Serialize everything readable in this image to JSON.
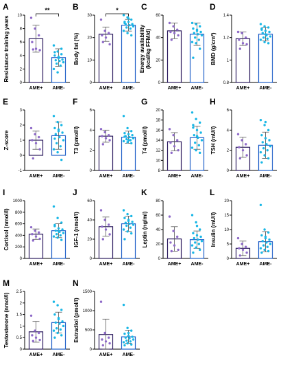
{
  "colors": {
    "ame_plus": "#2b1a5e",
    "ame_minus": "#1f5fc8",
    "dots_plus": "#8e6ac8",
    "dots_minus": "#19b7e6",
    "axis": "#000000"
  },
  "chart_data": [
    {
      "type": "bar",
      "panel": "A",
      "ylabel": "Resistance training years",
      "ylim": [
        0,
        10
      ],
      "yticks": [
        0,
        2,
        4,
        6,
        8,
        10
      ],
      "categories": [
        "AME+",
        "AME-"
      ],
      "values": [
        6.5,
        3.7
      ],
      "err": [
        2.0,
        1.3
      ],
      "points": [
        [
          9.6,
          8.0,
          7.0,
          6.0,
          5.0,
          4.8,
          4.9
        ],
        [
          5.5,
          4.6,
          4.2,
          4.0,
          3.8,
          3.4,
          3.3,
          3.2,
          3.0,
          2.8,
          2.5,
          2.0,
          1.5,
          5.0,
          4.5,
          3.6
        ]
      ],
      "significance": "**"
    },
    {
      "type": "bar",
      "panel": "B",
      "ylabel": "Body fat (%)",
      "ylim": [
        0,
        30
      ],
      "yticks": [
        0,
        10,
        20,
        30
      ],
      "categories": [
        "AME+",
        "AME-"
      ],
      "values": [
        21.5,
        25.5
      ],
      "err": [
        3.2,
        2.6
      ],
      "points": [
        [
          28,
          23,
          22,
          21,
          20,
          17,
          18
        ],
        [
          30,
          29,
          28,
          27,
          27,
          26,
          26,
          25.5,
          25,
          24.5,
          24,
          23,
          22,
          21,
          26.5,
          28.5
        ]
      ],
      "significance": "*"
    },
    {
      "type": "bar",
      "panel": "C",
      "ylabel": "Energy availability (kcal/kg FFM/d)",
      "ylim": [
        0,
        60
      ],
      "yticks": [
        0,
        20,
        40,
        60
      ],
      "categories": [
        "AME+",
        "AME-"
      ],
      "values": [
        46,
        43
      ],
      "err": [
        7,
        10
      ],
      "points": [
        [
          53,
          50,
          47,
          45,
          44,
          42,
          38
        ],
        [
          53,
          52,
          50,
          48,
          46,
          45,
          44,
          43,
          42,
          40,
          38,
          36,
          35,
          30,
          22,
          47
        ]
      ]
    },
    {
      "type": "bar",
      "panel": "D",
      "ylabel": "BMD (g/cm²)",
      "ylim": [
        0.8,
        1.4
      ],
      "yticks": [
        0.8,
        1.0,
        1.2,
        1.4
      ],
      "categories": [
        "AME+",
        "AME-"
      ],
      "values": [
        1.19,
        1.23
      ],
      "err": [
        0.06,
        0.06
      ],
      "points": [
        [
          1.25,
          1.24,
          1.2,
          1.18,
          1.15,
          1.14,
          1.1
        ],
        [
          1.32,
          1.3,
          1.29,
          1.28,
          1.26,
          1.25,
          1.24,
          1.22,
          1.21,
          1.2,
          1.19,
          1.18,
          1.16,
          1.15,
          1.27,
          1.23
        ]
      ]
    },
    {
      "type": "bar",
      "panel": "E",
      "ylabel": "Z-score",
      "ylim": [
        -1,
        3
      ],
      "yticks": [
        -1,
        0,
        1,
        2,
        3
      ],
      "categories": [
        "AME+",
        "AME-"
      ],
      "values": [
        1.0,
        1.3
      ],
      "err": [
        0.6,
        0.9
      ],
      "points": [
        [
          1.8,
          1.4,
          1.2,
          1.0,
          0.8,
          0.4,
          -0.2
        ],
        [
          2.6,
          2.2,
          2.0,
          1.8,
          1.6,
          1.5,
          1.4,
          1.2,
          1.0,
          0.8,
          0.6,
          0.4,
          0.2,
          -0.3,
          1.1,
          1.7
        ]
      ]
    },
    {
      "type": "bar",
      "panel": "F",
      "ylabel": "T3 (pmol/l)",
      "ylim": [
        0,
        6
      ],
      "yticks": [
        0,
        2,
        4,
        6
      ],
      "categories": [
        "AME+",
        "AME-"
      ],
      "values": [
        3.4,
        3.3
      ],
      "err": [
        0.6,
        0.6
      ],
      "points": [
        [
          4.1,
          3.8,
          3.5,
          3.4,
          3.2,
          3.0,
          2.6
        ],
        [
          5.4,
          4.2,
          3.9,
          3.7,
          3.6,
          3.5,
          3.4,
          3.3,
          3.2,
          3.1,
          3.0,
          2.9,
          2.8,
          2.7,
          3.35,
          3.0
        ]
      ]
    },
    {
      "type": "bar",
      "panel": "G",
      "ylabel": "T4 (pmol/l)",
      "ylim": [
        8,
        20
      ],
      "yticks": [
        8,
        10,
        12,
        14,
        16,
        18,
        20
      ],
      "categories": [
        "AME+",
        "AME-"
      ],
      "values": [
        13.7,
        14.5
      ],
      "err": [
        1.8,
        2.3
      ],
      "points": [
        [
          16.2,
          15.0,
          14.0,
          13.5,
          12.8,
          12.0,
          11.5
        ],
        [
          19.5,
          18.2,
          17.5,
          16.5,
          16.0,
          15.5,
          15.0,
          14.5,
          14.0,
          13.5,
          13.0,
          12.5,
          12.0,
          11.5,
          17.0,
          14.8
        ]
      ]
    },
    {
      "type": "bar",
      "panel": "H",
      "ylabel": "TSH (mU/l)",
      "ylim": [
        0,
        6
      ],
      "yticks": [
        0,
        2,
        4,
        6
      ],
      "categories": [
        "AME+",
        "AME-"
      ],
      "values": [
        2.3,
        2.5
      ],
      "err": [
        1.0,
        1.3
      ],
      "points": [
        [
          3.6,
          3.0,
          2.6,
          2.3,
          2.0,
          1.5,
          1.2
        ],
        [
          5.0,
          4.5,
          4.0,
          3.5,
          3.2,
          3.0,
          2.8,
          2.6,
          2.4,
          2.2,
          2.0,
          1.8,
          1.5,
          1.2,
          0.8,
          4.8
        ]
      ]
    },
    {
      "type": "bar",
      "panel": "I",
      "ylabel": "Cortisol (nmol/l)",
      "ylim": [
        0,
        1000
      ],
      "yticks": [
        0,
        200,
        400,
        600,
        800,
        1000
      ],
      "categories": [
        "AME+",
        "AME-"
      ],
      "values": [
        420,
        480
      ],
      "err": [
        90,
        120
      ],
      "points": [
        [
          540,
          480,
          450,
          420,
          380,
          340,
          310
        ],
        [
          900,
          700,
          620,
          560,
          520,
          500,
          480,
          460,
          440,
          420,
          400,
          380,
          360,
          320,
          580,
          470
        ]
      ]
    },
    {
      "type": "bar",
      "panel": "J",
      "ylabel": "IGF-1 (nmol/l)",
      "ylim": [
        0,
        60
      ],
      "yticks": [
        0,
        20,
        40,
        60
      ],
      "categories": [
        "AME+",
        "AME-"
      ],
      "values": [
        33,
        36
      ],
      "err": [
        10,
        8
      ],
      "points": [
        [
          50,
          40,
          35,
          33,
          30,
          25,
          20
        ],
        [
          50,
          46,
          44,
          42,
          40,
          38,
          37,
          36,
          35,
          34,
          32,
          30,
          28,
          26,
          20,
          39
        ]
      ]
    },
    {
      "type": "bar",
      "panel": "K",
      "ylabel": "Leptin (ng/ml)",
      "ylim": [
        0,
        80
      ],
      "yticks": [
        0,
        20,
        40,
        60,
        80
      ],
      "categories": [
        "AME+",
        "AME-"
      ],
      "values": [
        27,
        26
      ],
      "err": [
        17,
        12
      ],
      "points": [
        [
          58,
          38,
          30,
          22,
          18,
          12,
          10
        ],
        [
          60,
          50,
          40,
          35,
          32,
          30,
          28,
          26,
          24,
          22,
          20,
          18,
          15,
          12,
          8,
          45
        ]
      ]
    },
    {
      "type": "bar",
      "panel": "L",
      "ylabel": "Insulin (mU/l)",
      "ylim": [
        0,
        20
      ],
      "yticks": [
        0,
        5,
        10,
        15,
        20
      ],
      "categories": [
        "AME+",
        "AME-"
      ],
      "values": [
        3.5,
        5.8
      ],
      "err": [
        2.5,
        3.5
      ],
      "points": [
        [
          7,
          5,
          4,
          3.5,
          3,
          2,
          1
        ],
        [
          18.5,
          10,
          9,
          8,
          7,
          6.5,
          6,
          5.5,
          5,
          4.5,
          4,
          3.5,
          3,
          2.5,
          2,
          7.5
        ]
      ]
    },
    {
      "type": "bar",
      "panel": "M",
      "ylabel": "Testosterone (nmol/l)",
      "ylim": [
        0,
        2.5
      ],
      "yticks": [
        0,
        0.5,
        1.0,
        1.5,
        2.0,
        2.5
      ],
      "categories": [
        "AME+",
        "AME-"
      ],
      "values": [
        0.75,
        1.15
      ],
      "err": [
        0.45,
        0.45
      ],
      "points": [
        [
          1.45,
          0.8,
          0.7,
          0.6,
          0.5,
          0.4,
          0.35
        ],
        [
          2.05,
          1.9,
          1.7,
          1.5,
          1.35,
          1.2,
          1.15,
          1.1,
          1.0,
          0.9,
          0.85,
          0.8,
          0.7,
          0.6,
          0.5,
          1.3
        ]
      ]
    },
    {
      "type": "bar",
      "panel": "N",
      "ylabel": "Estradiol (pmol/l)",
      "ylim": [
        0,
        1500
      ],
      "yticks": [
        0,
        500,
        1000,
        1500
      ],
      "categories": [
        "AME+",
        "AME-"
      ],
      "values": [
        380,
        320
      ],
      "err": [
        400,
        170
      ],
      "points": [
        [
          1230,
          420,
          300,
          250,
          200,
          150,
          100
        ],
        [
          1150,
          550,
          480,
          400,
          350,
          320,
          300,
          280,
          250,
          220,
          200,
          180,
          150,
          120,
          100,
          420
        ]
      ]
    }
  ]
}
